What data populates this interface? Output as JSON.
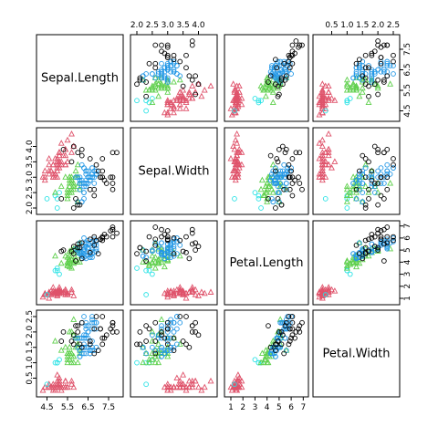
{
  "chart_data": {
    "type": "scatter",
    "variables": [
      "Sepal.Length",
      "Sepal.Width",
      "Petal.Length",
      "Petal.Width"
    ],
    "ranges": [
      [
        4.3,
        7.9
      ],
      [
        2.0,
        4.4
      ],
      [
        1.0,
        6.9
      ],
      [
        0.1,
        2.5
      ]
    ],
    "ticks": [
      {
        "values": [
          4.5,
          5.5,
          6.5,
          7.5
        ],
        "labels": [
          "4.5",
          "5.5",
          "6.5",
          "7.5"
        ]
      },
      {
        "values": [
          2.0,
          2.5,
          3.0,
          3.5,
          4.0
        ],
        "labels": [
          "2.0",
          "2.5",
          "3.0",
          "3.5",
          "4.0"
        ]
      },
      {
        "values": [
          1,
          2,
          3,
          4,
          5,
          6,
          7
        ],
        "labels": [
          "1",
          "2",
          "3",
          "4",
          "5",
          "6",
          "7"
        ]
      },
      {
        "values": [
          0.5,
          1.0,
          1.5,
          2.0,
          2.5
        ],
        "labels": [
          "0.5",
          "1.0",
          "1.5",
          "2.0",
          "2.5"
        ]
      }
    ],
    "marker_legend": [
      {
        "marker": "circle",
        "color": "#000000"
      },
      {
        "marker": "triangle",
        "color": "#DF536B"
      },
      {
        "marker": "triangle",
        "color": "#61D04F"
      },
      {
        "marker": "circle",
        "color": "#2297E6"
      },
      {
        "marker": "circle",
        "color": "#28E2E5"
      }
    ],
    "groups": [
      {
        "marker": "triangle",
        "color": "#DF536B",
        "points": [
          [
            5.1,
            3.5,
            1.4,
            0.2
          ],
          [
            4.9,
            3.0,
            1.4,
            0.2
          ],
          [
            4.7,
            3.2,
            1.3,
            0.2
          ],
          [
            4.6,
            3.1,
            1.5,
            0.2
          ],
          [
            5.0,
            3.6,
            1.4,
            0.2
          ],
          [
            5.4,
            3.9,
            1.7,
            0.4
          ],
          [
            4.6,
            3.4,
            1.4,
            0.3
          ],
          [
            5.0,
            3.4,
            1.5,
            0.2
          ],
          [
            4.4,
            2.9,
            1.4,
            0.2
          ],
          [
            4.9,
            3.1,
            1.5,
            0.1
          ],
          [
            5.4,
            3.7,
            1.5,
            0.2
          ],
          [
            4.8,
            3.4,
            1.6,
            0.2
          ],
          [
            4.8,
            3.0,
            1.4,
            0.1
          ],
          [
            4.3,
            3.0,
            1.1,
            0.1
          ],
          [
            5.8,
            4.0,
            1.2,
            0.2
          ],
          [
            5.7,
            4.4,
            1.5,
            0.4
          ],
          [
            5.4,
            3.9,
            1.3,
            0.4
          ],
          [
            5.1,
            3.5,
            1.4,
            0.3
          ],
          [
            5.7,
            3.8,
            1.7,
            0.3
          ],
          [
            5.1,
            3.8,
            1.5,
            0.3
          ],
          [
            5.4,
            3.4,
            1.7,
            0.2
          ],
          [
            5.1,
            3.7,
            1.5,
            0.4
          ],
          [
            4.6,
            3.6,
            1.0,
            0.2
          ],
          [
            5.1,
            3.3,
            1.7,
            0.5
          ],
          [
            4.8,
            3.4,
            1.9,
            0.2
          ],
          [
            5.0,
            3.0,
            1.6,
            0.2
          ],
          [
            5.0,
            3.4,
            1.6,
            0.4
          ],
          [
            5.2,
            3.5,
            1.5,
            0.2
          ],
          [
            5.2,
            3.4,
            1.4,
            0.2
          ],
          [
            4.7,
            3.2,
            1.6,
            0.2
          ],
          [
            4.8,
            3.1,
            1.6,
            0.2
          ],
          [
            5.4,
            3.4,
            1.5,
            0.4
          ],
          [
            5.2,
            4.1,
            1.5,
            0.1
          ],
          [
            5.5,
            4.2,
            1.4,
            0.2
          ],
          [
            4.9,
            3.1,
            1.5,
            0.2
          ],
          [
            5.0,
            3.2,
            1.2,
            0.2
          ],
          [
            5.5,
            3.5,
            1.3,
            0.2
          ],
          [
            4.9,
            3.6,
            1.4,
            0.1
          ],
          [
            4.4,
            3.0,
            1.3,
            0.2
          ],
          [
            5.1,
            3.4,
            1.5,
            0.2
          ],
          [
            5.0,
            3.5,
            1.3,
            0.3
          ],
          [
            4.4,
            3.2,
            1.3,
            0.2
          ],
          [
            5.0,
            3.5,
            1.6,
            0.6
          ],
          [
            5.1,
            3.8,
            1.9,
            0.4
          ],
          [
            4.8,
            3.0,
            1.4,
            0.3
          ],
          [
            5.1,
            3.8,
            1.6,
            0.2
          ],
          [
            4.6,
            3.2,
            1.4,
            0.2
          ],
          [
            5.3,
            3.7,
            1.5,
            0.2
          ],
          [
            5.0,
            3.3,
            1.4,
            0.2
          ]
        ]
      },
      {
        "marker": "circle",
        "color": "#28E2E5",
        "points": [
          [
            4.5,
            2.3,
            1.3,
            0.3
          ],
          [
            4.9,
            2.4,
            3.3,
            1.0
          ],
          [
            5.0,
            2.0,
            3.5,
            1.0
          ],
          [
            5.0,
            2.3,
            3.3,
            1.0
          ],
          [
            5.1,
            2.5,
            3.0,
            1.1
          ]
        ]
      },
      {
        "marker": "triangle",
        "color": "#61D04F",
        "points": [
          [
            5.5,
            2.3,
            4.0,
            1.3
          ],
          [
            5.7,
            2.8,
            4.5,
            1.3
          ],
          [
            5.2,
            2.7,
            3.9,
            1.4
          ],
          [
            5.9,
            3.0,
            4.2,
            1.5
          ],
          [
            6.0,
            2.2,
            4.0,
            1.0
          ],
          [
            5.6,
            2.9,
            3.6,
            1.3
          ],
          [
            5.6,
            3.0,
            4.5,
            1.5
          ],
          [
            5.8,
            2.7,
            4.1,
            1.0
          ],
          [
            5.6,
            2.5,
            3.9,
            1.1
          ],
          [
            5.9,
            3.2,
            4.8,
            1.8
          ],
          [
            6.1,
            2.8,
            4.0,
            1.3
          ],
          [
            5.7,
            2.6,
            3.5,
            1.0
          ],
          [
            5.5,
            2.4,
            3.8,
            1.1
          ],
          [
            5.5,
            2.4,
            3.7,
            1.0
          ],
          [
            5.8,
            2.7,
            3.9,
            1.2
          ],
          [
            6.0,
            2.7,
            5.1,
            1.6
          ],
          [
            5.4,
            3.0,
            4.5,
            1.5
          ],
          [
            6.0,
            3.4,
            4.5,
            1.6
          ],
          [
            5.6,
            3.0,
            4.1,
            1.3
          ],
          [
            5.5,
            2.5,
            4.0,
            1.3
          ],
          [
            5.5,
            2.6,
            4.4,
            1.2
          ],
          [
            5.8,
            2.6,
            4.0,
            1.2
          ],
          [
            5.6,
            2.7,
            4.2,
            1.3
          ],
          [
            5.7,
            3.0,
            4.2,
            1.2
          ],
          [
            5.7,
            2.9,
            4.2,
            1.3
          ],
          [
            5.7,
            2.5,
            5.0,
            2.0
          ],
          [
            5.8,
            2.8,
            5.1,
            2.4
          ],
          [
            6.0,
            2.2,
            5.0,
            1.5
          ],
          [
            5.6,
            2.8,
            4.9,
            2.0
          ],
          [
            6.1,
            2.6,
            5.6,
            1.4
          ],
          [
            6.0,
            3.0,
            4.8,
            1.8
          ],
          [
            5.8,
            2.7,
            5.1,
            1.9
          ],
          [
            5.9,
            3.0,
            5.1,
            1.8
          ],
          [
            5.8,
            2.7,
            5.1,
            1.9
          ],
          [
            4.9,
            2.5,
            4.5,
            1.7
          ]
        ]
      },
      {
        "marker": "circle",
        "color": "#2297E6",
        "points": [
          [
            6.4,
            3.2,
            4.5,
            1.5
          ],
          [
            6.9,
            3.1,
            4.9,
            1.5
          ],
          [
            6.5,
            2.8,
            4.6,
            1.5
          ],
          [
            6.3,
            3.3,
            4.7,
            1.6
          ],
          [
            6.6,
            2.9,
            4.6,
            1.3
          ],
          [
            6.7,
            3.1,
            4.4,
            1.4
          ],
          [
            6.2,
            2.2,
            4.5,
            1.5
          ],
          [
            6.1,
            2.9,
            4.7,
            1.4
          ],
          [
            6.4,
            2.9,
            4.3,
            1.3
          ],
          [
            6.6,
            3.0,
            4.4,
            1.4
          ],
          [
            6.8,
            2.8,
            4.8,
            1.4
          ],
          [
            6.7,
            3.0,
            5.0,
            1.7
          ],
          [
            6.3,
            2.5,
            4.9,
            1.5
          ],
          [
            6.1,
            2.8,
            4.7,
            1.2
          ],
          [
            6.7,
            3.1,
            4.7,
            1.5
          ],
          [
            6.3,
            2.3,
            4.4,
            1.3
          ],
          [
            6.2,
            2.9,
            4.3,
            1.3
          ],
          [
            6.3,
            3.3,
            6.0,
            2.5
          ],
          [
            6.5,
            3.0,
            5.8,
            2.2
          ],
          [
            6.4,
            2.7,
            5.3,
            1.9
          ],
          [
            6.8,
            3.0,
            5.5,
            2.1
          ],
          [
            6.4,
            3.2,
            5.3,
            2.3
          ],
          [
            6.5,
            3.0,
            5.5,
            1.8
          ],
          [
            6.0,
            2.2,
            5.0,
            1.5
          ],
          [
            6.9,
            3.2,
            5.7,
            2.3
          ],
          [
            6.3,
            2.7,
            4.9,
            1.8
          ],
          [
            6.7,
            3.3,
            5.7,
            2.1
          ],
          [
            6.2,
            2.8,
            4.8,
            1.8
          ],
          [
            6.1,
            3.0,
            4.9,
            1.8
          ],
          [
            6.4,
            2.8,
            5.6,
            2.1
          ],
          [
            6.3,
            2.8,
            5.1,
            1.5
          ],
          [
            6.1,
            2.6,
            5.6,
            1.4
          ],
          [
            6.4,
            3.1,
            5.5,
            1.8
          ],
          [
            6.0,
            3.0,
            4.8,
            1.8
          ],
          [
            6.9,
            3.1,
            5.4,
            2.1
          ],
          [
            6.7,
            3.1,
            5.6,
            2.4
          ],
          [
            6.9,
            3.1,
            5.1,
            2.3
          ],
          [
            6.8,
            3.2,
            5.9,
            2.3
          ],
          [
            6.7,
            3.3,
            5.7,
            2.5
          ],
          [
            6.7,
            3.0,
            5.2,
            2.3
          ],
          [
            6.3,
            2.5,
            5.0,
            1.9
          ],
          [
            6.5,
            3.0,
            5.2,
            2.0
          ],
          [
            6.2,
            3.4,
            5.4,
            2.3
          ],
          [
            5.9,
            3.0,
            5.1,
            1.8
          ],
          [
            6.6,
            2.9,
            4.6,
            1.3
          ],
          [
            6.2,
            2.2,
            4.5,
            1.5
          ],
          [
            6.5,
            3.2,
            5.1,
            2.0
          ],
          [
            6.4,
            2.8,
            5.6,
            2.2
          ],
          [
            6.1,
            2.8,
            4.7,
            1.2
          ],
          [
            6.6,
            3.0,
            4.4,
            1.4
          ]
        ]
      },
      {
        "marker": "circle",
        "color": "#000000",
        "points": [
          [
            7.0,
            3.2,
            4.7,
            1.4
          ],
          [
            7.1,
            3.0,
            5.9,
            2.1
          ],
          [
            7.6,
            3.0,
            6.6,
            2.1
          ],
          [
            7.3,
            2.9,
            6.3,
            1.8
          ],
          [
            7.2,
            3.6,
            6.1,
            2.5
          ],
          [
            7.7,
            3.8,
            6.7,
            2.2
          ],
          [
            7.7,
            2.6,
            6.9,
            2.3
          ],
          [
            7.7,
            2.8,
            6.7,
            2.0
          ],
          [
            7.2,
            3.2,
            6.0,
            1.8
          ],
          [
            7.2,
            3.0,
            5.8,
            1.6
          ],
          [
            7.4,
            2.8,
            6.1,
            1.9
          ],
          [
            7.9,
            3.8,
            6.4,
            2.0
          ],
          [
            7.7,
            3.0,
            6.1,
            2.3
          ],
          [
            7.1,
            3.0,
            5.9,
            2.1
          ],
          [
            5.8,
            4.0,
            5.3,
            1.9
          ],
          [
            5.7,
            3.5,
            4.9,
            1.7
          ],
          [
            5.3,
            3.9,
            5.0,
            2.0
          ],
          [
            6.2,
            3.9,
            5.6,
            2.3
          ],
          [
            6.9,
            3.4,
            5.8,
            2.5
          ],
          [
            5.2,
            2.3,
            4.9,
            1.7
          ],
          [
            5.8,
            2.0,
            4.7,
            1.6
          ],
          [
            6.0,
            2.1,
            5.2,
            2.0
          ],
          [
            6.8,
            2.4,
            6.1,
            2.1
          ],
          [
            6.0,
            3.8,
            5.5,
            2.2
          ],
          [
            5.9,
            2.3,
            4.1,
            2.2
          ],
          [
            6.1,
            2.1,
            5.2,
            1.6
          ],
          [
            6.6,
            3.6,
            4.8,
            1.6
          ],
          [
            6.6,
            2.6,
            5.9,
            1.7
          ],
          [
            6.8,
            2.6,
            5.4,
            1.3
          ],
          [
            6.2,
            3.7,
            4.3,
            1.5
          ]
        ]
      }
    ]
  }
}
